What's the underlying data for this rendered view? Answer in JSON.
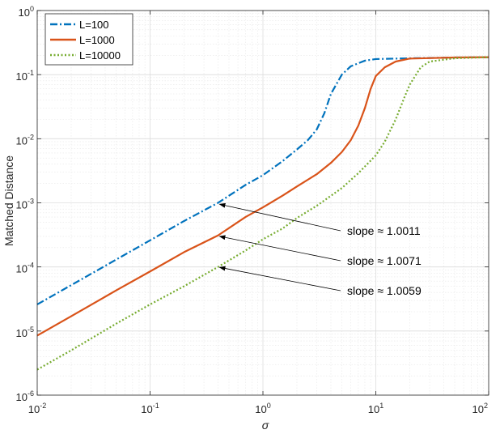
{
  "chart_data": {
    "type": "line",
    "xscale": "log",
    "yscale": "log",
    "xlim": [
      0.01,
      100
    ],
    "ylim": [
      1e-06,
      1
    ],
    "grid": true,
    "xlabel": "σ",
    "ylabel": "Matched Distance",
    "legend_position": "top-left",
    "x_ticks": [
      {
        "base": "10",
        "exp": "-2",
        "value": 0.01
      },
      {
        "base": "10",
        "exp": "-1",
        "value": 0.1
      },
      {
        "base": "10",
        "exp": "0",
        "value": 1
      },
      {
        "base": "10",
        "exp": "1",
        "value": 10
      },
      {
        "base": "10",
        "exp": "2",
        "value": 100
      }
    ],
    "y_ticks": [
      {
        "base": "10",
        "exp": "-6",
        "value": 1e-06
      },
      {
        "base": "10",
        "exp": "-5",
        "value": 1e-05
      },
      {
        "base": "10",
        "exp": "-4",
        "value": 0.0001
      },
      {
        "base": "10",
        "exp": "-3",
        "value": 0.001
      },
      {
        "base": "10",
        "exp": "-2",
        "value": 0.01
      },
      {
        "base": "10",
        "exp": "-1",
        "value": 0.1
      },
      {
        "base": "10",
        "exp": "0",
        "value": 1
      }
    ],
    "series": [
      {
        "name": "L=100",
        "color": "#0072BD",
        "style": "dash-dot",
        "x": [
          0.01,
          0.02,
          0.05,
          0.1,
          0.2,
          0.4,
          0.7,
          1.0,
          1.5,
          2.0,
          2.5,
          3.0,
          3.5,
          4.0,
          5.0,
          6.0,
          8.0,
          10,
          20,
          50,
          100
        ],
        "y": [
          2.6e-05,
          5.2e-05,
          0.00013,
          0.00026,
          0.00052,
          0.001,
          0.0019,
          0.0027,
          0.0045,
          0.0068,
          0.0095,
          0.014,
          0.025,
          0.05,
          0.1,
          0.135,
          0.165,
          0.175,
          0.18,
          0.185,
          0.187
        ]
      },
      {
        "name": "L=1000",
        "color": "#D95319",
        "style": "solid",
        "x": [
          0.01,
          0.02,
          0.05,
          0.1,
          0.2,
          0.4,
          0.7,
          1.0,
          1.5,
          2.0,
          3.0,
          4.0,
          5.0,
          6.0,
          7.0,
          8.0,
          9.0,
          10,
          12,
          15,
          20,
          50,
          100
        ],
        "y": [
          8.5e-06,
          1.7e-05,
          4.3e-05,
          8.5e-05,
          0.00017,
          0.00031,
          0.0006,
          0.00085,
          0.0013,
          0.0018,
          0.0028,
          0.0042,
          0.0062,
          0.0095,
          0.016,
          0.03,
          0.06,
          0.095,
          0.13,
          0.16,
          0.178,
          0.185,
          0.187
        ]
      },
      {
        "name": "L=10000",
        "color": "#77AC30",
        "style": "dotted",
        "x": [
          0.01,
          0.02,
          0.05,
          0.1,
          0.2,
          0.4,
          0.7,
          1.0,
          1.5,
          2.0,
          3.0,
          5.0,
          7.0,
          10,
          12,
          15,
          18,
          20,
          25,
          30,
          50,
          100
        ],
        "y": [
          2.5e-06,
          5e-06,
          1.3e-05,
          2.6e-05,
          5e-05,
          0.0001,
          0.00018,
          0.00027,
          0.0004,
          0.00058,
          0.0009,
          0.0017,
          0.0029,
          0.0055,
          0.009,
          0.02,
          0.045,
          0.07,
          0.13,
          0.16,
          0.18,
          0.187
        ]
      }
    ],
    "annotations": [
      {
        "text": "slope ≈ 1.0011",
        "arrow_to": [
          0.4,
          0.00095
        ]
      },
      {
        "text": "slope ≈ 1.0071",
        "arrow_to": [
          0.4,
          0.0003
        ]
      },
      {
        "text": "slope ≈ 1.0059",
        "arrow_to": [
          0.4,
          9.85e-05
        ]
      }
    ]
  }
}
